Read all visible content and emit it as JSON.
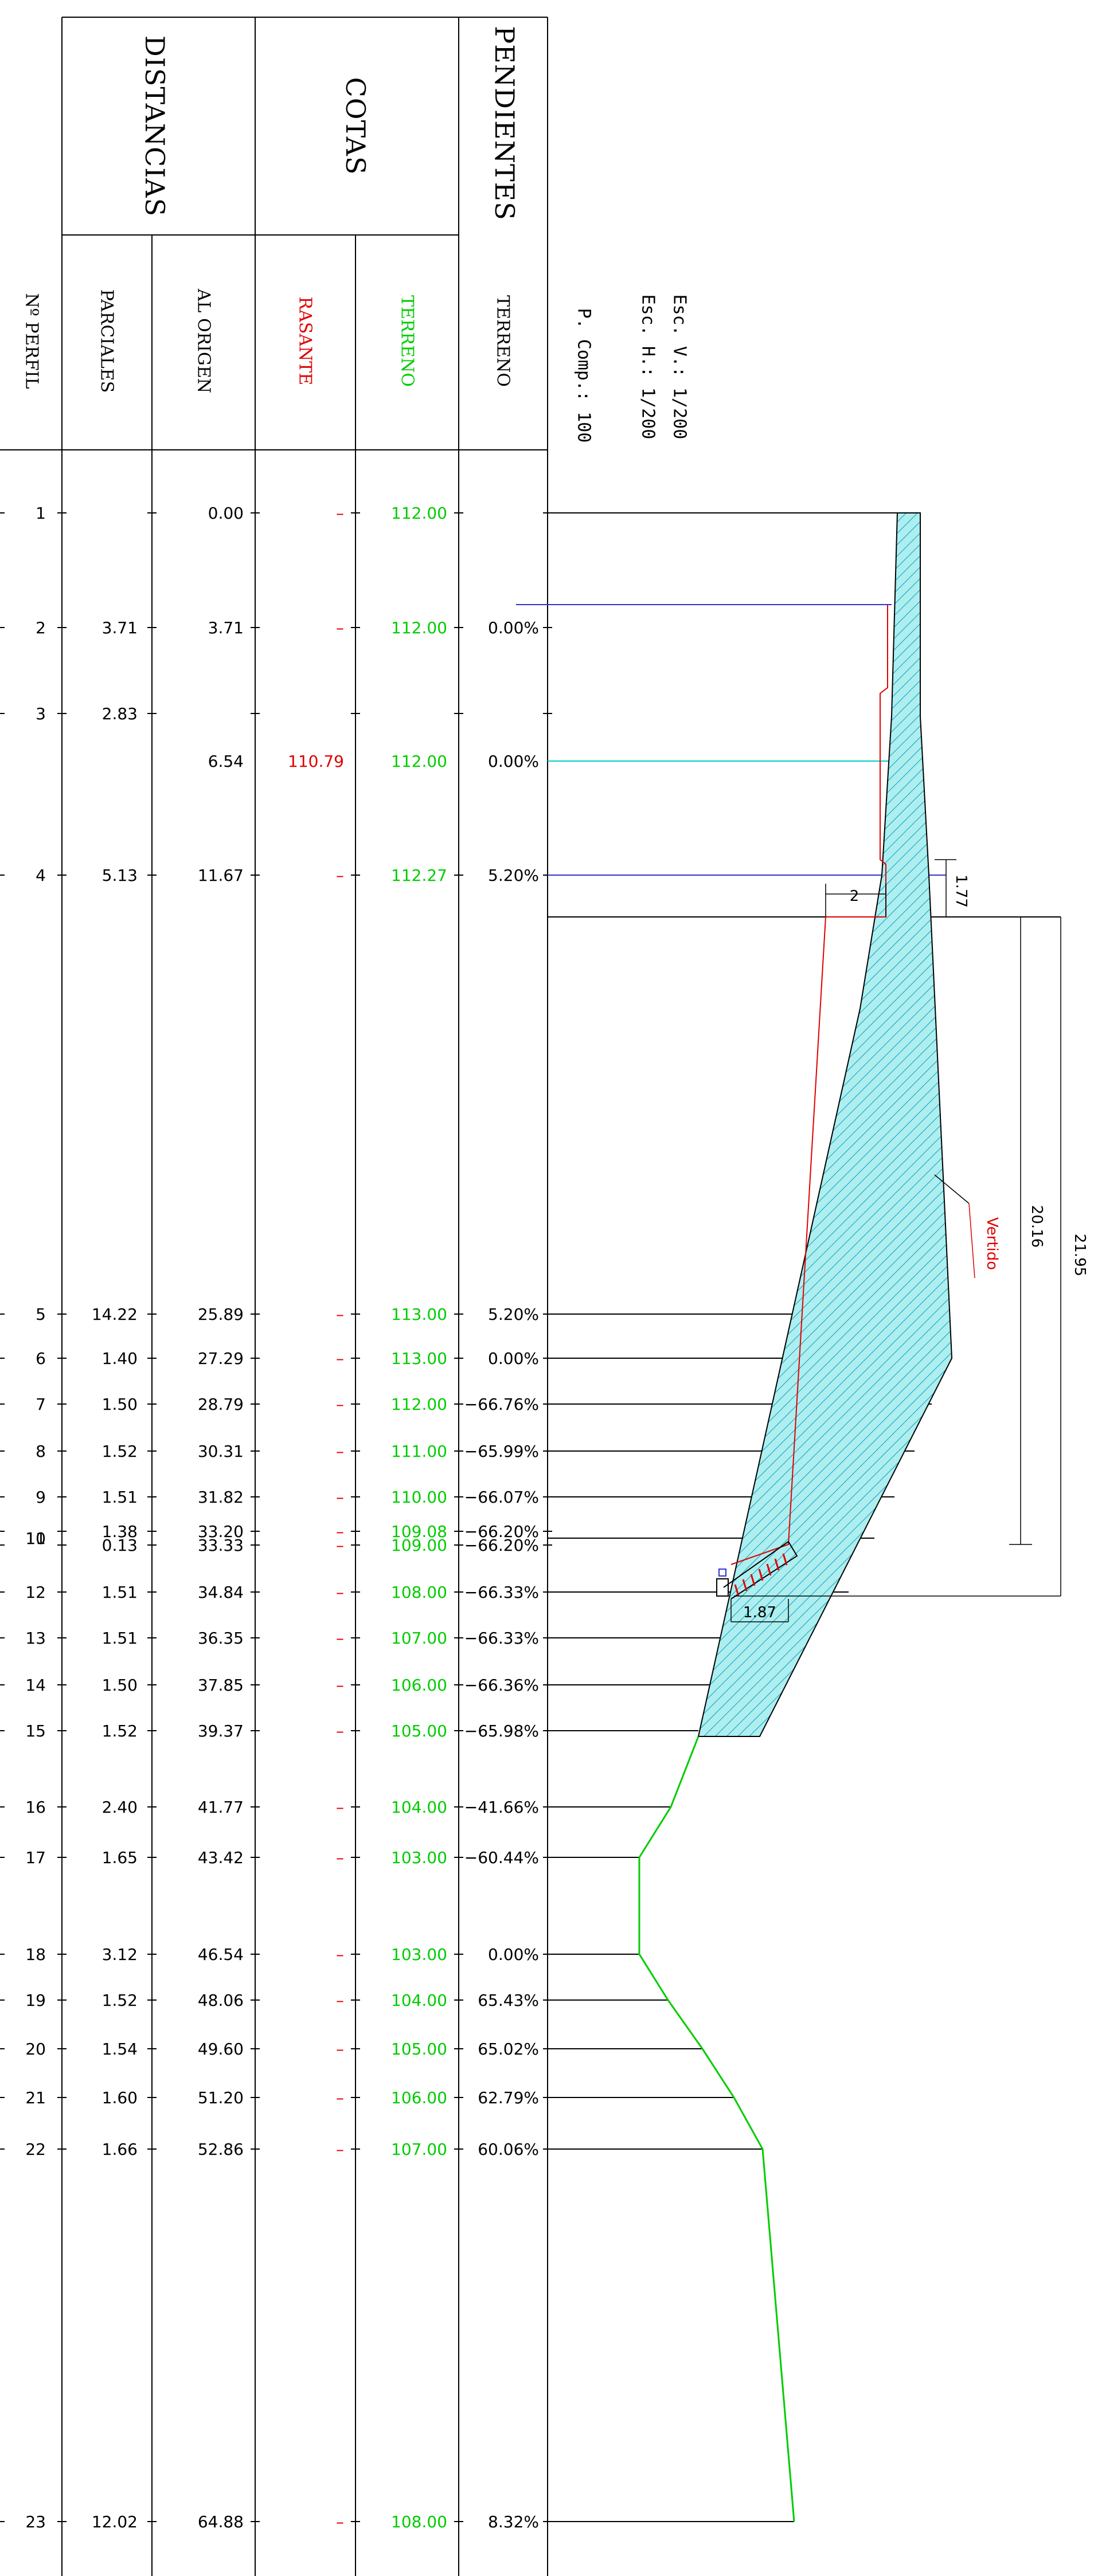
{
  "header": {
    "perfil": "Nº PERFIL",
    "distancias": "DISTANCIAS",
    "parciales": "PARCIALES",
    "al_origen": "AL ORIGEN",
    "cotas": "COTAS",
    "rasante": "RASANTE",
    "terreno": "TERRENO",
    "pendientes": "PENDIENTES",
    "pend_terreno": "TERRENO"
  },
  "scales": {
    "esc_v": "Esc. V.: 1/200",
    "esc_h": "Esc. H.: 1/200",
    "p_comp": "P. Comp.: 100"
  },
  "colors": {
    "rasante": "#e00000",
    "terreno": "#00cc00",
    "fill": "#aeeeee",
    "hatch": "#00a0c8",
    "plan_blue": "#3333cc",
    "plan_cyan": "#00cccc"
  },
  "rows": [
    {
      "n": "1",
      "parcial": "",
      "origen": "0.00",
      "rasante": "–",
      "terreno": "112.00",
      "pend": ""
    },
    {
      "n": "2",
      "parcial": "3.71",
      "origen": "3.71",
      "rasante": "–",
      "terreno": "112.00",
      "pend": "0.00%"
    },
    {
      "n": "3",
      "parcial": "2.83",
      "origen": "6.54",
      "rasante": "110.79",
      "terreno": "112.00",
      "pend": "0.00%"
    },
    {
      "n": "4",
      "parcial": "5.13",
      "origen": "11.67",
      "rasante": "–",
      "terreno": "112.27",
      "pend": "5.20%"
    },
    {
      "n": "5",
      "parcial": "14.22",
      "origen": "25.89",
      "rasante": "–",
      "terreno": "113.00",
      "pend": "5.20%"
    },
    {
      "n": "6",
      "parcial": "1.40",
      "origen": "27.29",
      "rasante": "–",
      "terreno": "113.00",
      "pend": "0.00%"
    },
    {
      "n": "7",
      "parcial": "1.50",
      "origen": "28.79",
      "rasante": "–",
      "terreno": "112.00",
      "pend": "−66.76%"
    },
    {
      "n": "8",
      "parcial": "1.52",
      "origen": "30.31",
      "rasante": "–",
      "terreno": "111.00",
      "pend": "−65.99%"
    },
    {
      "n": "9",
      "parcial": "1.51",
      "origen": "31.82",
      "rasante": "–",
      "terreno": "110.00",
      "pend": "−66.07%"
    },
    {
      "n": "10",
      "parcial": "1.38",
      "origen": "33.20",
      "rasante": "–",
      "terreno": "109.08",
      "pend": "−66.20%"
    },
    {
      "n": "11",
      "parcial": "0.13",
      "origen": "33.33",
      "rasante": "–",
      "terreno": "109.00",
      "pend": "−66.20%"
    },
    {
      "n": "12",
      "parcial": "1.51",
      "origen": "34.84",
      "rasante": "–",
      "terreno": "108.00",
      "pend": "−66.33%"
    },
    {
      "n": "13",
      "parcial": "1.51",
      "origen": "36.35",
      "rasante": "–",
      "terreno": "107.00",
      "pend": "−66.33%"
    },
    {
      "n": "14",
      "parcial": "1.50",
      "origen": "37.85",
      "rasante": "–",
      "terreno": "106.00",
      "pend": "−66.36%"
    },
    {
      "n": "15",
      "parcial": "1.52",
      "origen": "39.37",
      "rasante": "–",
      "terreno": "105.00",
      "pend": "−65.98%"
    },
    {
      "n": "16",
      "parcial": "2.40",
      "origen": "41.77",
      "rasante": "–",
      "terreno": "104.00",
      "pend": "−41.66%"
    },
    {
      "n": "17",
      "parcial": "1.65",
      "origen": "43.42",
      "rasante": "–",
      "terreno": "103.00",
      "pend": "−60.44%"
    },
    {
      "n": "18",
      "parcial": "3.12",
      "origen": "46.54",
      "rasante": "–",
      "terreno": "103.00",
      "pend": "0.00%"
    },
    {
      "n": "19",
      "parcial": "1.52",
      "origen": "48.06",
      "rasante": "–",
      "terreno": "104.00",
      "pend": "65.43%"
    },
    {
      "n": "20",
      "parcial": "1.54",
      "origen": "49.60",
      "rasante": "–",
      "terreno": "105.00",
      "pend": "65.02%"
    },
    {
      "n": "21",
      "parcial": "1.60",
      "origen": "51.20",
      "rasante": "–",
      "terreno": "106.00",
      "pend": "62.79%"
    },
    {
      "n": "22",
      "parcial": "1.66",
      "origen": "52.86",
      "rasante": "–",
      "terreno": "107.00",
      "pend": "60.06%"
    },
    {
      "n": "23",
      "parcial": "12.02",
      "origen": "64.88",
      "rasante": "–",
      "terreno": "108.00",
      "pend": "8.32%"
    }
  ],
  "annotations": {
    "vertido": "Vertido",
    "dim_2": "2",
    "dim_177": "1.77",
    "dim_2016": "20.16",
    "dim_2195": "21.95",
    "dim_187": "1.87"
  }
}
